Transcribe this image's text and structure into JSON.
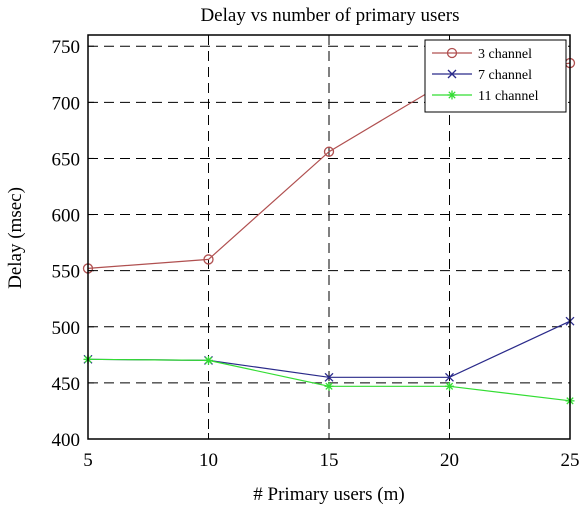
{
  "chart_data": {
    "type": "line",
    "title": "Delay vs number of primary users",
    "xlabel": "# Primary users (m)",
    "ylabel": "Delay (msec)",
    "xlim": [
      5,
      25
    ],
    "ylim": [
      400,
      760
    ],
    "x_ticks": [
      5,
      10,
      15,
      20,
      25
    ],
    "y_ticks": [
      400,
      450,
      500,
      550,
      600,
      650,
      700,
      750
    ],
    "grid": true,
    "legend_position": "top-right",
    "x": [
      5,
      10,
      15,
      20,
      25
    ],
    "series": [
      {
        "name": "3 channel",
        "values": [
          552,
          560,
          656,
          720,
          735
        ],
        "color": "#b05050",
        "marker": "circle"
      },
      {
        "name": "7 channel",
        "values": [
          471,
          470,
          455,
          455,
          505
        ],
        "color": "#2a2a8a",
        "marker": "x"
      },
      {
        "name": "11 channel",
        "values": [
          471,
          470,
          447,
          447,
          434
        ],
        "color": "#33dd33",
        "marker": "star"
      }
    ]
  }
}
